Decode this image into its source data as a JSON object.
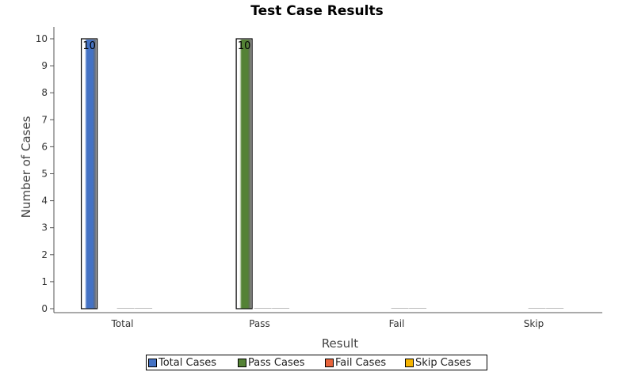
{
  "chart_data": {
    "type": "bar",
    "title": "Test Case Results",
    "xlabel": "Result",
    "ylabel": "Number of Cases",
    "categories": [
      "Total",
      "Pass",
      "Fail",
      "Skip"
    ],
    "ylim": [
      0,
      10
    ],
    "yticks": [
      "0",
      "1",
      "2",
      "3",
      "4",
      "5",
      "6",
      "7",
      "8",
      "9",
      "10"
    ],
    "grid": false,
    "legend_position": "bottom",
    "series": [
      {
        "name": "Total Cases",
        "color": "#4472c4",
        "values": [
          10,
          0,
          0,
          0
        ],
        "labels": [
          "10",
          "",
          "",
          ""
        ]
      },
      {
        "name": "Pass Cases",
        "color": "#548235",
        "values": [
          0,
          10,
          0,
          0
        ],
        "labels": [
          "",
          "10",
          "",
          ""
        ]
      },
      {
        "name": "Fail Cases",
        "color": "#e8643c",
        "values": [
          0,
          0,
          0,
          0
        ],
        "labels": [
          "",
          "",
          "",
          ""
        ]
      },
      {
        "name": "Skip Cases",
        "color": "#f5b400",
        "values": [
          0,
          0,
          0,
          0
        ],
        "labels": [
          "",
          "",
          "",
          ""
        ]
      }
    ]
  }
}
